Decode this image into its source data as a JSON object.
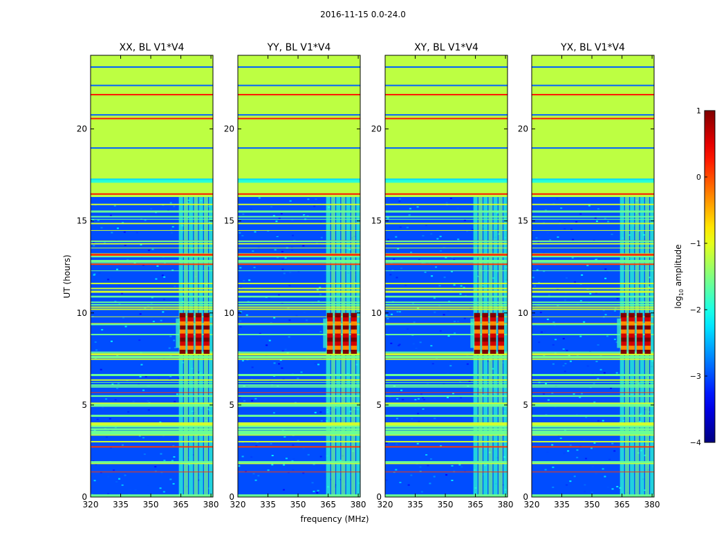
{
  "suptitle": "2016-11-15 0.0-24.0",
  "chart_data": {
    "type": "heatmap",
    "title": "2016-11-15 0.0-24.0",
    "xlabel": "frequency (MHz)",
    "ylabel": "UT (hours)",
    "xlim": [
      320,
      381
    ],
    "ylim": [
      0,
      24
    ],
    "xticks": [
      "320",
      "335",
      "350",
      "365",
      "380"
    ],
    "yticks": [
      "0",
      "5",
      "10",
      "15",
      "20"
    ],
    "panels": [
      {
        "title": "XX, BL V1*V4"
      },
      {
        "title": "YY, BL V1*V4"
      },
      {
        "title": "XY, BL V1*V4"
      },
      {
        "title": "YX, BL V1*V4"
      }
    ],
    "colorbar": {
      "label": "log10 amplitude",
      "label_main": "log",
      "label_sub": "10",
      "label_rest": " amplitude",
      "range": [
        -4,
        1
      ],
      "ticks": [
        "1",
        "0",
        "−1",
        "−2",
        "−3",
        "−4"
      ],
      "colormap": "jet"
    },
    "features": {
      "flagged_ut_bands": [
        [
          16.3,
          24.0
        ]
      ],
      "flag_level": -1.2,
      "background_level": -3.0,
      "rfi_frequency_band_mhz": [
        364,
        380
      ],
      "strong_signal_ut": [
        7.8,
        10.0
      ],
      "strong_signal_level": 0.5
    }
  }
}
